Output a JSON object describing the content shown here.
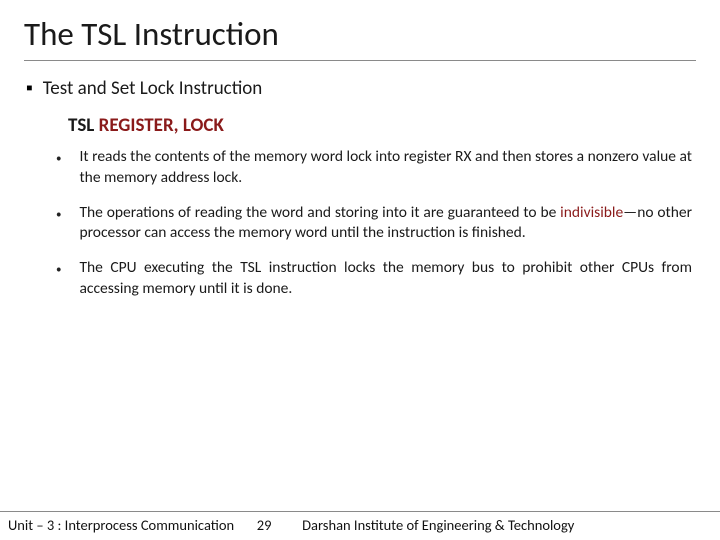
{
  "title": "The TSL Instruction",
  "section": {
    "bullet": "▪",
    "label": "Test and Set Lock Instruction"
  },
  "register_line": {
    "prefix": "TSL ",
    "highlight": "REGISTER, LOCK"
  },
  "bullets": [
    {
      "marker": "•",
      "text": "It reads the contents of the memory word lock into register RX and then stores a nonzero value at the memory address lock."
    },
    {
      "marker": "•",
      "text_before": "The operations of reading the word and storing into it are guaranteed to be ",
      "accent": "indivisible",
      "text_after": "—no other processor can access the memory word until the instruction is finished."
    },
    {
      "marker": "•",
      "text": "The CPU executing the TSL instruction locks the memory bus to prohibit other CPUs from accessing memory until it is done."
    }
  ],
  "footer": {
    "left": "Unit – 3 : Interprocess Communication",
    "page": "29",
    "right": "Darshan Institute of Engineering & Technology"
  },
  "colors": {
    "accent": "#8a1a1a",
    "rule": "#8a8a8a",
    "text": "#1a1a1a"
  }
}
